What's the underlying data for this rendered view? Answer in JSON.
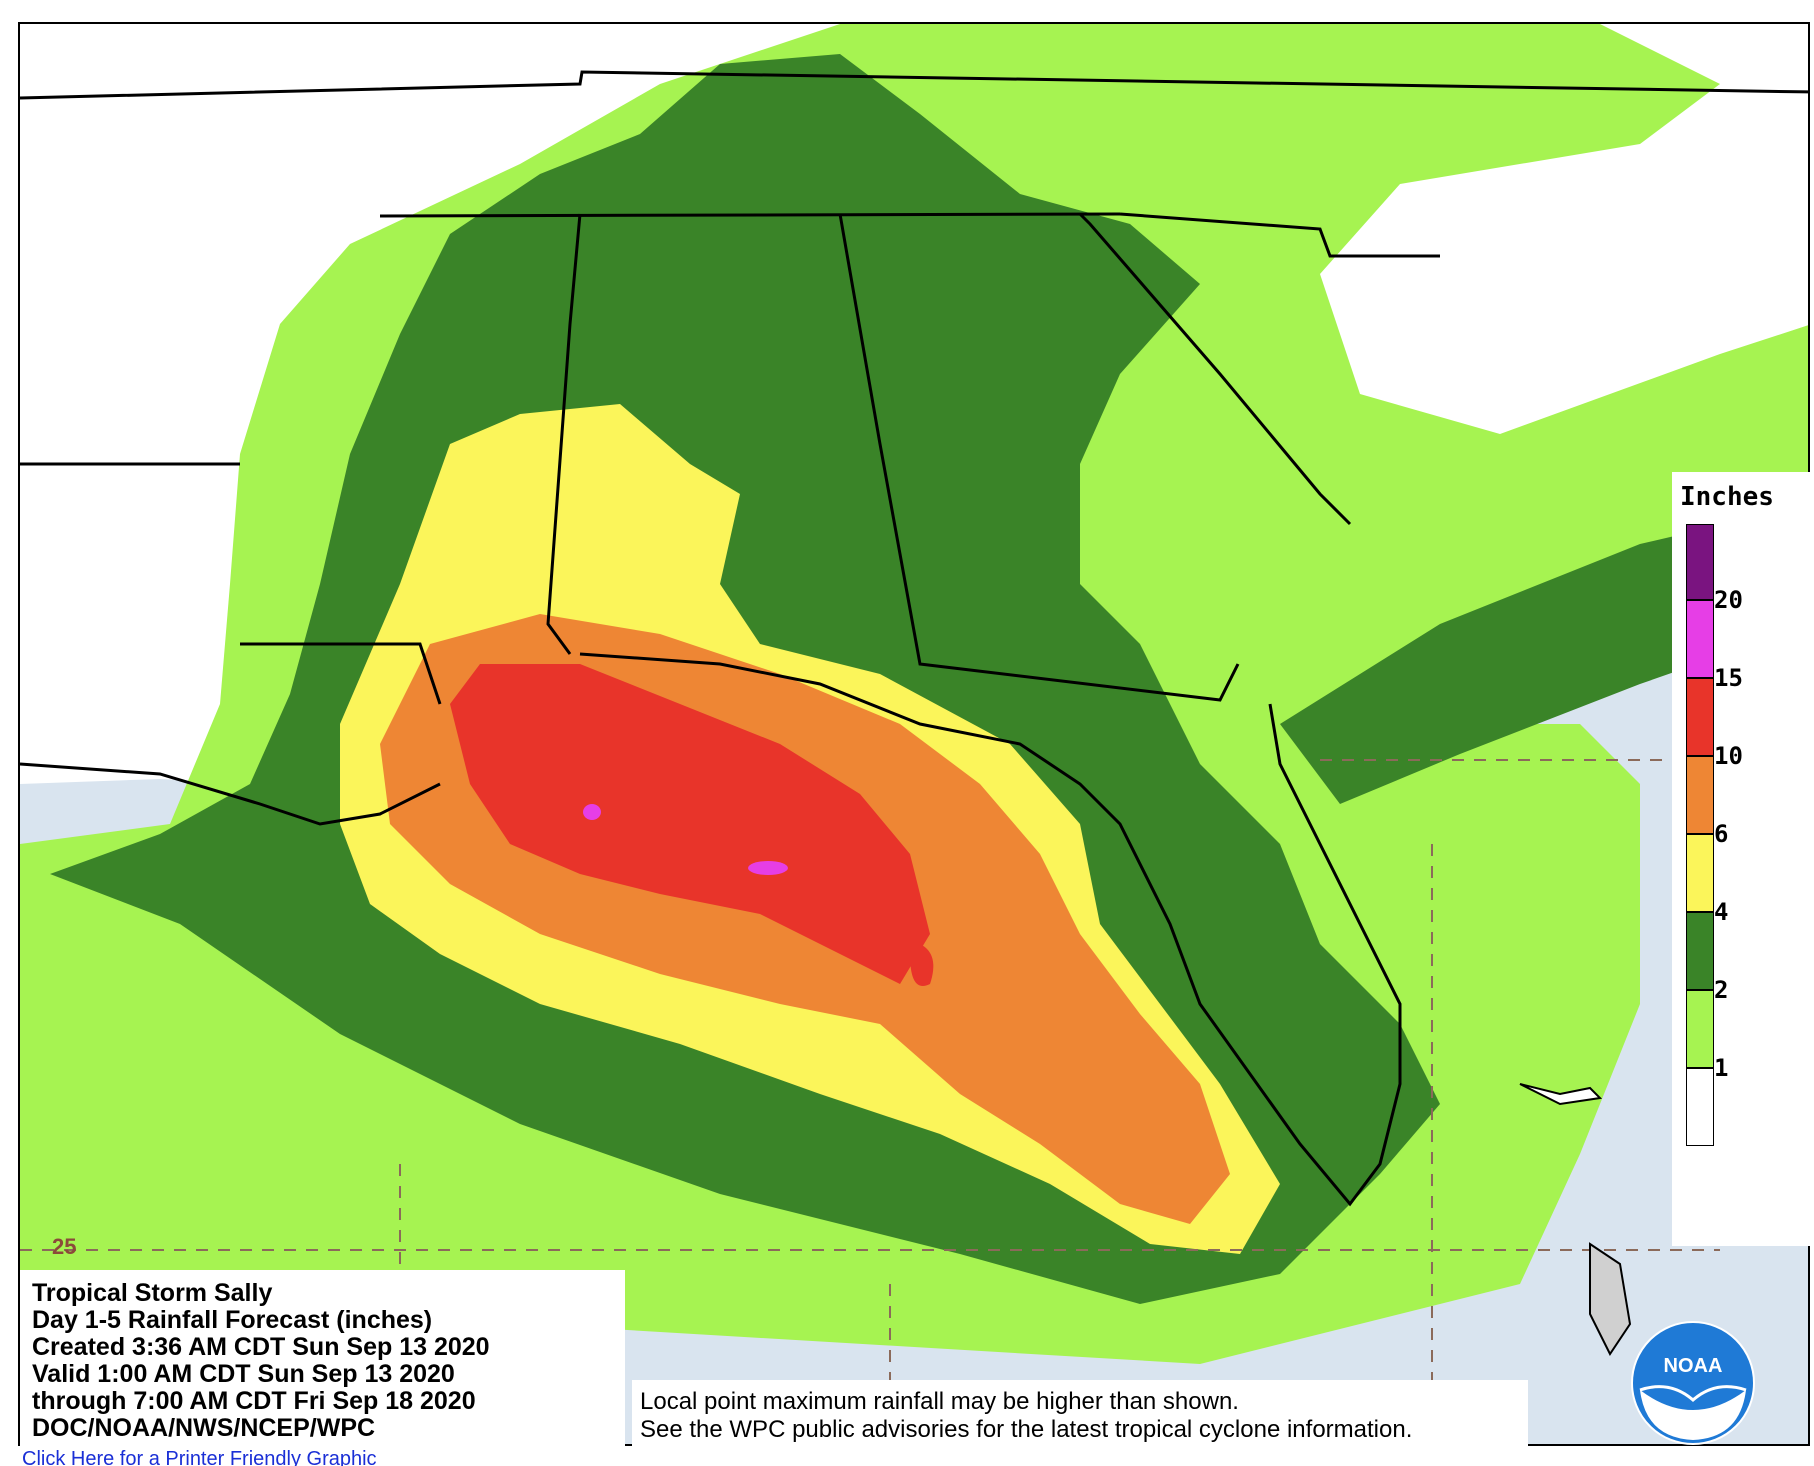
{
  "map": {
    "legend": {
      "title": "Inches",
      "ticks": [
        "20",
        "15",
        "10",
        "6",
        "4",
        "2",
        "1"
      ],
      "colors": {
        "above20": "#7a1480",
        "15to20": "#e63ee6",
        "10to15": "#e8342a",
        "6to10": "#ee8634",
        "4to6": "#fbf55a",
        "2to4": "#3a8428",
        "1to2": "#a6f351",
        "below1": "#ffffff"
      }
    },
    "info": {
      "line1": "Tropical Storm Sally",
      "line2": "Day 1-5 Rainfall Forecast (inches)",
      "line3": "Created 3:36 AM CDT Sun Sep 13 2020",
      "line4": "Valid 1:00 AM CDT Sun Sep 13 2020",
      "line5": "through 7:00 AM CDT Fri Sep 18 2020",
      "line6": "DOC/NOAA/NWS/NCEP/WPC"
    },
    "note": {
      "line1": "Local point maximum rainfall may be higher than shown.",
      "line2": "See the WPC public advisories for the latest tropical cyclone information."
    },
    "latitude_label": "25",
    "logo_text": "NOAA",
    "footer_link": "Click Here for a Printer Friendly Graphic"
  }
}
